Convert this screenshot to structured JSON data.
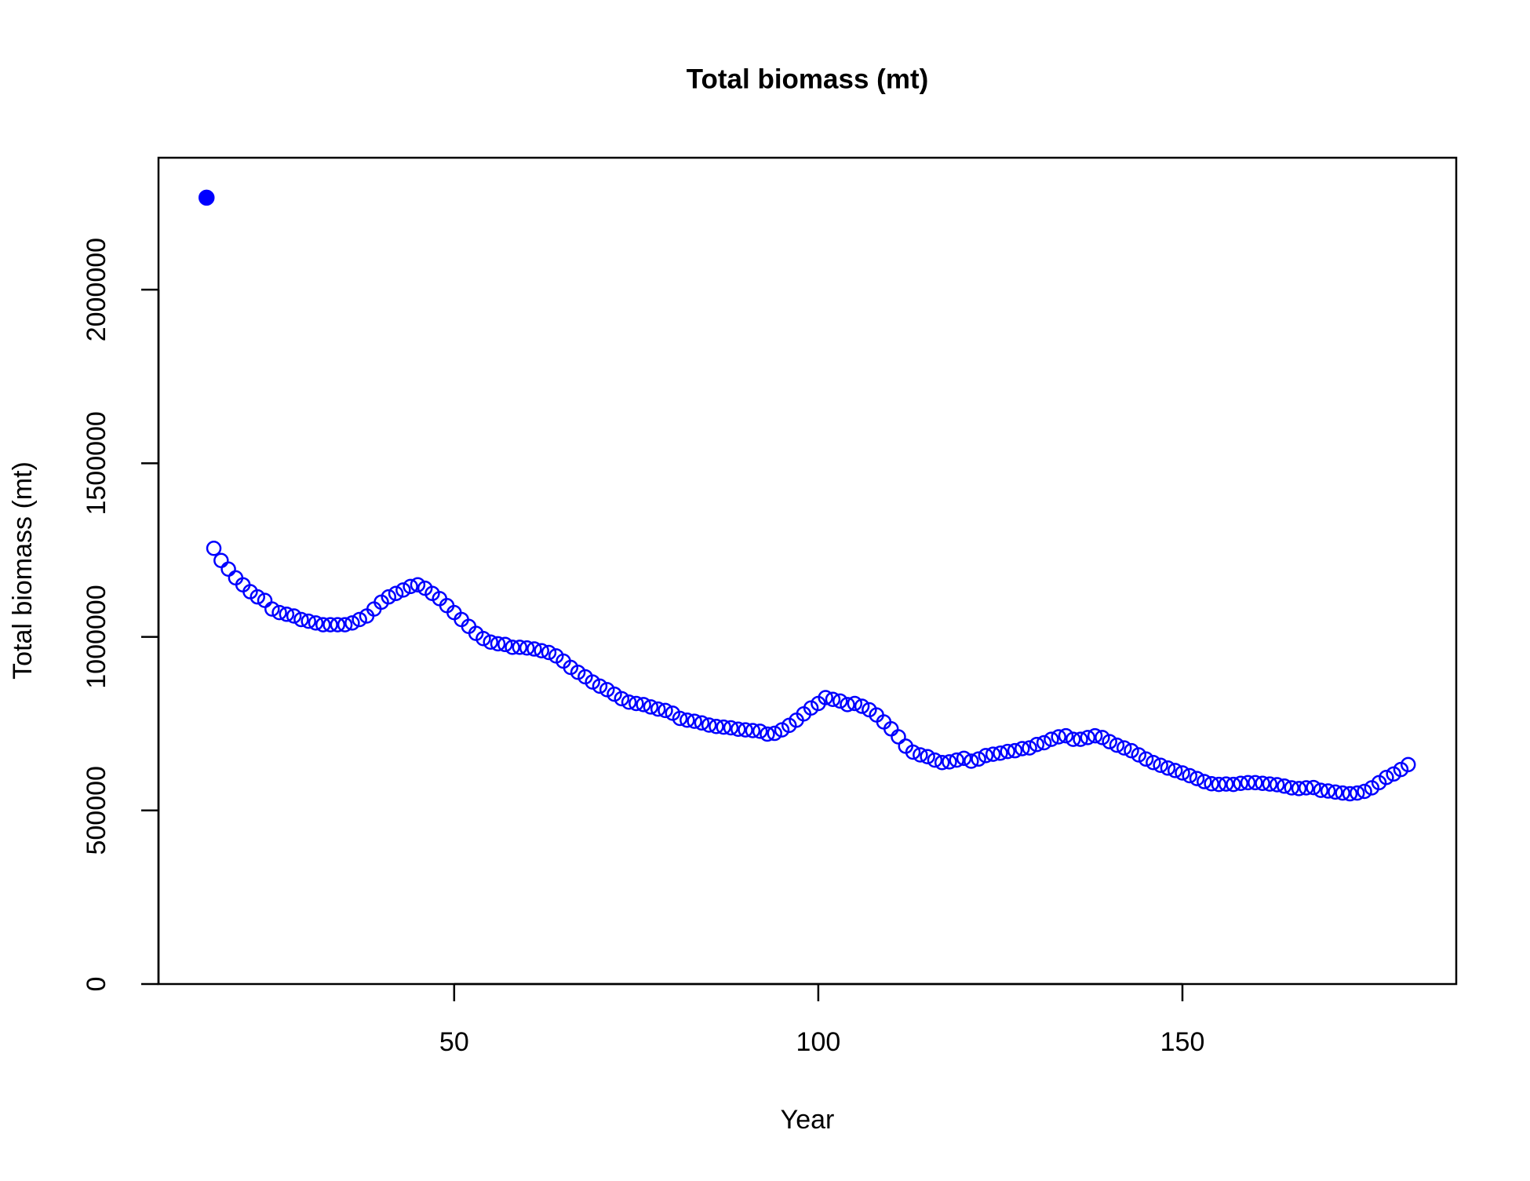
{
  "chart_data": {
    "type": "scatter",
    "title": "Total biomass (mt)",
    "x_label": "Year",
    "y_label": "Total biomass (mt)",
    "xlim": [
      9.4,
      187.6
    ],
    "ylim": [
      0,
      2380000
    ],
    "xticks": [
      50,
      100,
      150
    ],
    "yticks": [
      0,
      500000,
      1000000,
      1500000,
      2000000
    ],
    "series": [
      {
        "color": "#0000ff",
        "filled": true,
        "x": [
          16
        ],
        "values": [
          2265000
        ]
      },
      {
        "color": "#0000ff",
        "filled": false,
        "x": [
          17,
          18,
          19,
          20,
          21,
          22,
          23,
          24,
          25,
          26,
          27,
          28,
          29,
          30,
          31,
          32,
          33,
          34,
          35,
          36,
          37,
          38,
          39,
          40,
          41,
          42,
          43,
          44,
          45,
          46,
          47,
          48,
          49,
          50,
          51,
          52,
          53,
          54,
          55,
          56,
          57,
          58,
          59,
          60,
          61,
          62,
          63,
          64,
          65,
          66,
          67,
          68,
          69,
          70,
          71,
          72,
          73,
          74,
          75,
          76,
          77,
          78,
          79,
          80,
          81,
          82,
          83,
          84,
          85,
          86,
          87,
          88,
          89,
          90,
          91,
          92,
          93,
          94,
          95,
          96,
          97,
          98,
          99,
          100,
          101,
          102,
          103,
          104,
          105,
          106,
          107,
          108,
          109,
          110,
          111,
          112,
          113,
          114,
          115,
          116,
          117,
          118,
          119,
          120,
          121,
          122,
          123,
          124,
          125,
          126,
          127,
          128,
          129,
          130,
          131,
          132,
          133,
          134,
          135,
          136,
          137,
          138,
          139,
          140,
          141,
          142,
          143,
          144,
          145,
          146,
          147,
          148,
          149,
          150,
          151,
          152,
          153,
          154,
          155,
          156,
          157,
          158,
          159,
          160,
          161,
          162,
          163,
          164,
          165,
          166,
          167,
          168,
          169,
          170,
          171,
          172,
          173,
          174,
          175,
          176,
          177,
          178,
          179,
          180,
          181
        ],
        "values": [
          1255000,
          1220000,
          1195000,
          1170000,
          1150000,
          1130000,
          1115000,
          1105000,
          1080000,
          1070000,
          1065000,
          1060000,
          1050000,
          1045000,
          1040000,
          1035000,
          1035000,
          1035000,
          1035000,
          1040000,
          1050000,
          1060000,
          1080000,
          1100000,
          1115000,
          1125000,
          1135000,
          1145000,
          1150000,
          1140000,
          1125000,
          1110000,
          1090000,
          1070000,
          1050000,
          1030000,
          1010000,
          995000,
          985000,
          980000,
          978000,
          970000,
          970000,
          968000,
          965000,
          960000,
          955000,
          945000,
          930000,
          912000,
          898000,
          885000,
          870000,
          858000,
          848000,
          835000,
          822000,
          812000,
          808000,
          805000,
          798000,
          792000,
          788000,
          780000,
          765000,
          760000,
          757000,
          752000,
          746000,
          742000,
          740000,
          738000,
          734000,
          732000,
          730000,
          728000,
          720000,
          722000,
          732000,
          745000,
          760000,
          778000,
          795000,
          808000,
          825000,
          820000,
          815000,
          805000,
          808000,
          800000,
          790000,
          775000,
          755000,
          735000,
          712000,
          685000,
          668000,
          660000,
          655000,
          645000,
          638000,
          640000,
          645000,
          650000,
          642000,
          648000,
          658000,
          662000,
          665000,
          670000,
          672000,
          678000,
          680000,
          690000,
          695000,
          705000,
          712000,
          715000,
          705000,
          705000,
          710000,
          715000,
          710000,
          698000,
          688000,
          680000,
          672000,
          660000,
          648000,
          638000,
          630000,
          622000,
          615000,
          608000,
          600000,
          592000,
          583000,
          577000,
          575000,
          576000,
          575000,
          578000,
          580000,
          580000,
          578000,
          576000,
          574000,
          570000,
          565000,
          563000,
          565000,
          566000,
          558000,
          556000,
          553000,
          550000,
          548000,
          550000,
          555000,
          565000,
          580000,
          595000,
          605000,
          618000,
          632000
        ]
      }
    ]
  }
}
